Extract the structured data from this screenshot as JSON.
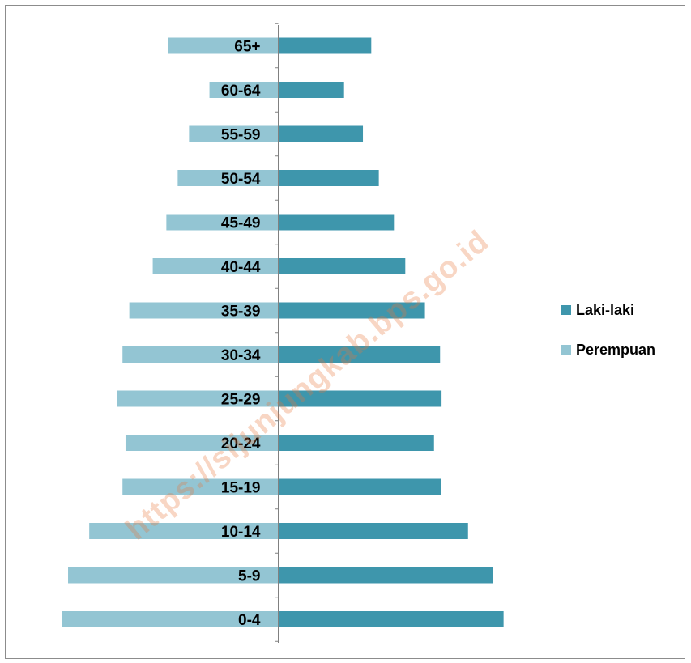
{
  "chart_data": {
    "type": "bar",
    "orientation": "horizontal",
    "layout": "population-pyramid",
    "categories": [
      "0-4",
      "5-9",
      "10-14",
      "15-19",
      "20-24",
      "25-29",
      "30-34",
      "35-39",
      "40-44",
      "45-49",
      "50-54",
      "55-59",
      "60-64",
      "65+"
    ],
    "series": [
      {
        "name": "Laki-laki",
        "side": "right",
        "color": "#3e96ac",
        "values": [
          1490,
          1420,
          1255,
          1075,
          1030,
          1080,
          1070,
          970,
          840,
          765,
          665,
          560,
          435,
          615
        ]
      },
      {
        "name": "Perempuan",
        "side": "left",
        "color": "#93c5d3",
        "values": [
          1430,
          1390,
          1250,
          1030,
          1010,
          1065,
          1030,
          985,
          830,
          740,
          665,
          590,
          455,
          730
        ]
      }
    ],
    "xlim": [
      -1500,
      1500
    ],
    "x_axis_visible": false,
    "grid": false,
    "legend_position": "right"
  },
  "watermark": {
    "text": "https://sijunjungkab.bps.go.id"
  }
}
